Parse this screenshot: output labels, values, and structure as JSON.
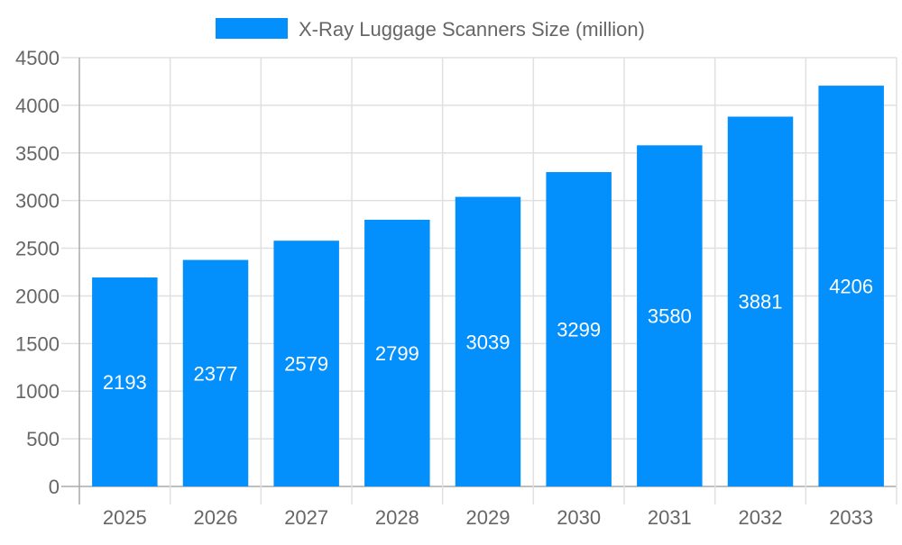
{
  "chart_data": {
    "type": "bar",
    "categories": [
      "2025",
      "2026",
      "2027",
      "2028",
      "2029",
      "2030",
      "2031",
      "2032",
      "2033"
    ],
    "series": [
      {
        "name": "X-Ray Luggage Scanners Size (million)",
        "values": [
          2193,
          2377,
          2579,
          2799,
          3039,
          3299,
          3580,
          3881,
          4206
        ]
      }
    ],
    "ylim": [
      0,
      4500
    ],
    "yticks": [
      0,
      500,
      1000,
      1500,
      2000,
      2500,
      3000,
      3500,
      4000,
      4500
    ],
    "grid": true,
    "legend": "top-center",
    "data_labels": "inside bar center",
    "colors": {
      "bar": "#038ffc",
      "text": "#666666",
      "grid": "#e0e0e0",
      "axis": "#aaaaaa",
      "label": "#ffffff"
    }
  }
}
